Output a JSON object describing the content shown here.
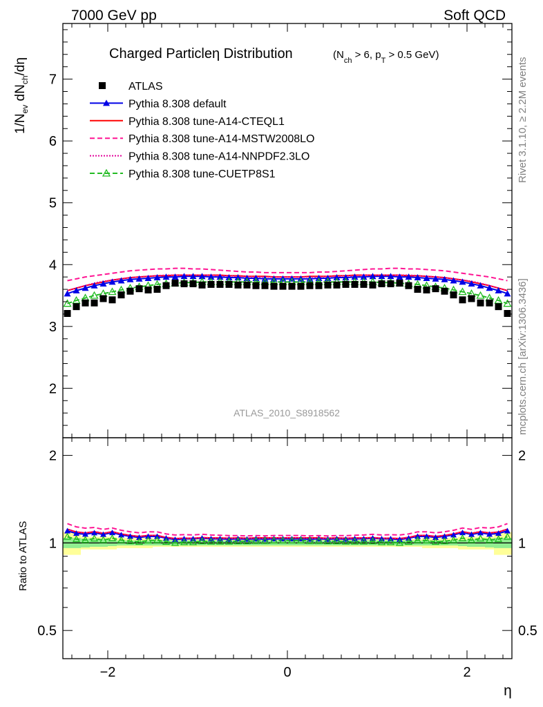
{
  "header": {
    "energy": "7000 GeV pp",
    "category": "Soft QCD"
  },
  "side_labels": {
    "rivet": "Rivet 3.1.10, ≥ 2.2M events",
    "mcplots": "mcplots.cern.ch [arXiv:1306.3436]"
  },
  "watermark": "ATLAS_2010_S8918562",
  "chart_data": {
    "type": "scatter",
    "title": "Charged Particleη Distribution",
    "subtitle_parts": {
      "open": "(N",
      "sub1": "ch",
      "mid": " > 6, p",
      "sub2": "T",
      "close": " > 0.5 GeV)"
    },
    "xlabel": "η",
    "ylabel_parts": {
      "a": "1/N",
      "sub1": "ev",
      "b": " dN",
      "sub2": "ch",
      "c": "/dη"
    },
    "ratio_ylabel": "Ratio to ATLAS",
    "xlim": [
      -2.5,
      2.5
    ],
    "ylim": [
      1.2,
      7.9
    ],
    "ratio_ylim": [
      0.4,
      2.3
    ],
    "x_ticks": [
      -2,
      0,
      2
    ],
    "x_tick_labels": [
      "−2",
      "0",
      "2"
    ],
    "y_ticks": [
      2,
      3,
      4,
      5,
      6,
      7
    ],
    "y_tick_labels": [
      "2",
      "3",
      "4",
      "5",
      "6",
      "7"
    ],
    "ratio_ticks": [
      0.5,
      1,
      2
    ],
    "ratio_tick_labels": [
      "0.5",
      "1",
      "2"
    ],
    "x": [
      -2.45,
      -2.35,
      -2.25,
      -2.15,
      -2.05,
      -1.95,
      -1.85,
      -1.75,
      -1.65,
      -1.55,
      -1.45,
      -1.35,
      -1.25,
      -1.15,
      -1.05,
      -0.95,
      -0.85,
      -0.75,
      -0.65,
      -0.55,
      -0.45,
      -0.35,
      -0.25,
      -0.15,
      -0.05,
      0.05,
      0.15,
      0.25,
      0.35,
      0.45,
      0.55,
      0.65,
      0.75,
      0.85,
      0.95,
      1.05,
      1.15,
      1.25,
      1.35,
      1.45,
      1.55,
      1.65,
      1.75,
      1.85,
      1.95,
      2.05,
      2.15,
      2.25,
      2.35,
      2.45
    ],
    "data": {
      "name": "ATLAS",
      "values": [
        3.21,
        3.32,
        3.38,
        3.38,
        3.45,
        3.43,
        3.51,
        3.57,
        3.61,
        3.59,
        3.6,
        3.66,
        3.7,
        3.69,
        3.69,
        3.67,
        3.68,
        3.68,
        3.68,
        3.67,
        3.67,
        3.66,
        3.66,
        3.65,
        3.65,
        3.65,
        3.65,
        3.66,
        3.66,
        3.67,
        3.67,
        3.68,
        3.68,
        3.68,
        3.67,
        3.69,
        3.69,
        3.7,
        3.66,
        3.6,
        3.59,
        3.61,
        3.57,
        3.51,
        3.43,
        3.45,
        3.38,
        3.38,
        3.32,
        3.21
      ],
      "color": "#000000"
    },
    "series": [
      {
        "name": "Pythia 8.308 default",
        "color": "#0000e6",
        "style": "solid-triangle",
        "values": [
          3.53,
          3.58,
          3.62,
          3.66,
          3.69,
          3.72,
          3.74,
          3.76,
          3.77,
          3.78,
          3.79,
          3.8,
          3.8,
          3.81,
          3.81,
          3.81,
          3.8,
          3.8,
          3.79,
          3.79,
          3.78,
          3.78,
          3.77,
          3.77,
          3.77,
          3.77,
          3.77,
          3.77,
          3.78,
          3.78,
          3.79,
          3.79,
          3.8,
          3.8,
          3.81,
          3.81,
          3.81,
          3.8,
          3.8,
          3.79,
          3.78,
          3.77,
          3.76,
          3.74,
          3.72,
          3.69,
          3.66,
          3.62,
          3.58,
          3.53
        ]
      },
      {
        "name": "Pythia 8.308 tune-A14-CTEQL1",
        "color": "#ff0000",
        "style": "solid",
        "values": [
          3.58,
          3.62,
          3.66,
          3.69,
          3.72,
          3.75,
          3.77,
          3.79,
          3.8,
          3.81,
          3.82,
          3.82,
          3.83,
          3.83,
          3.83,
          3.83,
          3.83,
          3.83,
          3.82,
          3.82,
          3.81,
          3.81,
          3.81,
          3.8,
          3.8,
          3.8,
          3.8,
          3.81,
          3.81,
          3.81,
          3.82,
          3.82,
          3.83,
          3.83,
          3.83,
          3.83,
          3.83,
          3.83,
          3.82,
          3.82,
          3.81,
          3.8,
          3.79,
          3.77,
          3.75,
          3.72,
          3.69,
          3.66,
          3.62,
          3.58
        ]
      },
      {
        "name": "Pythia 8.308 tune-A14-MSTW2008LO",
        "color": "#ff1493",
        "style": "dashed",
        "values": [
          3.74,
          3.77,
          3.8,
          3.82,
          3.84,
          3.86,
          3.88,
          3.9,
          3.91,
          3.92,
          3.93,
          3.93,
          3.94,
          3.94,
          3.93,
          3.93,
          3.92,
          3.91,
          3.9,
          3.89,
          3.88,
          3.88,
          3.87,
          3.87,
          3.87,
          3.87,
          3.87,
          3.87,
          3.88,
          3.88,
          3.89,
          3.9,
          3.91,
          3.92,
          3.93,
          3.93,
          3.94,
          3.94,
          3.93,
          3.93,
          3.92,
          3.91,
          3.9,
          3.88,
          3.86,
          3.84,
          3.82,
          3.8,
          3.77,
          3.74
        ]
      },
      {
        "name": "Pythia 8.308 tune-A14-NNPDF2.3LO",
        "color": "#e10099",
        "style": "dotted",
        "values": [
          3.58,
          3.62,
          3.66,
          3.7,
          3.73,
          3.75,
          3.77,
          3.79,
          3.8,
          3.81,
          3.82,
          3.83,
          3.83,
          3.83,
          3.83,
          3.83,
          3.83,
          3.82,
          3.82,
          3.81,
          3.81,
          3.8,
          3.8,
          3.8,
          3.8,
          3.8,
          3.8,
          3.8,
          3.8,
          3.81,
          3.81,
          3.82,
          3.82,
          3.83,
          3.83,
          3.83,
          3.83,
          3.83,
          3.83,
          3.82,
          3.81,
          3.8,
          3.79,
          3.77,
          3.75,
          3.73,
          3.7,
          3.66,
          3.62,
          3.58
        ]
      },
      {
        "name": "Pythia 8.308 tune-CUETP8S1",
        "color": "#22bb22",
        "style": "dashed-open-triangle",
        "values": [
          3.37,
          3.42,
          3.46,
          3.5,
          3.53,
          3.56,
          3.59,
          3.62,
          3.64,
          3.66,
          3.68,
          3.69,
          3.7,
          3.71,
          3.71,
          3.72,
          3.72,
          3.72,
          3.72,
          3.72,
          3.72,
          3.72,
          3.72,
          3.72,
          3.72,
          3.72,
          3.72,
          3.72,
          3.72,
          3.72,
          3.72,
          3.72,
          3.72,
          3.72,
          3.72,
          3.71,
          3.71,
          3.7,
          3.69,
          3.68,
          3.66,
          3.64,
          3.62,
          3.59,
          3.56,
          3.53,
          3.5,
          3.46,
          3.42,
          3.37
        ]
      }
    ],
    "uncertainty_bands": {
      "stat_color": "#90ee90",
      "total_color": "#ffff99",
      "stat_fraction": [
        0.04,
        0.04,
        0.035,
        0.03,
        0.03,
        0.025,
        0.02,
        0.02,
        0.02,
        0.02,
        0.02,
        0.02,
        0.02,
        0.02,
        0.02,
        0.02,
        0.02,
        0.02,
        0.02,
        0.02,
        0.02,
        0.02,
        0.02,
        0.02,
        0.02,
        0.02,
        0.02,
        0.02,
        0.02,
        0.02,
        0.02,
        0.02,
        0.02,
        0.02,
        0.02,
        0.02,
        0.02,
        0.02,
        0.02,
        0.02,
        0.02,
        0.02,
        0.02,
        0.02,
        0.025,
        0.03,
        0.03,
        0.035,
        0.04,
        0.04
      ],
      "total_fraction": [
        0.09,
        0.09,
        0.05,
        0.05,
        0.05,
        0.05,
        0.04,
        0.04,
        0.04,
        0.04,
        0.03,
        0.03,
        0.03,
        0.03,
        0.03,
        0.03,
        0.03,
        0.03,
        0.03,
        0.03,
        0.03,
        0.03,
        0.03,
        0.03,
        0.03,
        0.03,
        0.03,
        0.03,
        0.03,
        0.03,
        0.03,
        0.03,
        0.03,
        0.03,
        0.03,
        0.03,
        0.03,
        0.03,
        0.03,
        0.03,
        0.04,
        0.04,
        0.04,
        0.04,
        0.05,
        0.05,
        0.05,
        0.05,
        0.09,
        0.09
      ]
    },
    "legend_position": "top-left",
    "grid": false
  }
}
